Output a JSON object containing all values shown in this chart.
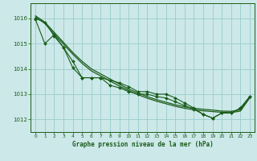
{
  "title": "Graphe pression niveau de la mer (hPa)",
  "bg_color": "#cce8e8",
  "grid_color": "#99cccc",
  "line_color": "#1a5c1a",
  "xlim": [
    -0.5,
    23.5
  ],
  "ylim": [
    1011.5,
    1016.6
  ],
  "yticks": [
    1012,
    1013,
    1014,
    1015,
    1016
  ],
  "xticks": [
    0,
    1,
    2,
    3,
    4,
    5,
    6,
    7,
    8,
    9,
    10,
    11,
    12,
    13,
    14,
    15,
    16,
    17,
    18,
    19,
    20,
    21,
    22,
    23
  ],
  "s1": [
    1016.1,
    1015.85,
    1015.45,
    1015.05,
    1014.65,
    1014.3,
    1014.0,
    1013.8,
    1013.6,
    1013.4,
    1013.2,
    1013.05,
    1012.9,
    1012.78,
    1012.68,
    1012.58,
    1012.5,
    1012.44,
    1012.4,
    1012.37,
    1012.33,
    1012.32,
    1012.38,
    1012.9
  ],
  "s2": [
    1016.05,
    1015.8,
    1015.38,
    1014.98,
    1014.58,
    1014.22,
    1013.92,
    1013.72,
    1013.52,
    1013.32,
    1013.14,
    1012.98,
    1012.84,
    1012.72,
    1012.62,
    1012.52,
    1012.44,
    1012.38,
    1012.34,
    1012.31,
    1012.28,
    1012.27,
    1012.33,
    1012.85
  ],
  "s3": [
    1015.95,
    1015.0,
    1015.35,
    1014.85,
    1014.05,
    1013.65,
    1013.65,
    1013.65,
    1013.55,
    1013.45,
    1013.3,
    1013.1,
    1013.1,
    1013.0,
    1013.0,
    1012.85,
    1012.65,
    1012.45,
    1012.2,
    1012.05,
    1012.25,
    1012.25,
    1012.45,
    1012.9
  ],
  "s4": [
    1016.0,
    1015.85,
    1015.3,
    1014.85,
    1014.3,
    1013.65,
    1013.65,
    1013.65,
    1013.35,
    1013.25,
    1013.1,
    1013.0,
    1013.0,
    1012.9,
    1012.85,
    1012.7,
    1012.55,
    1012.4,
    1012.2,
    1012.05,
    1012.25,
    1012.25,
    1012.45,
    1012.9
  ]
}
